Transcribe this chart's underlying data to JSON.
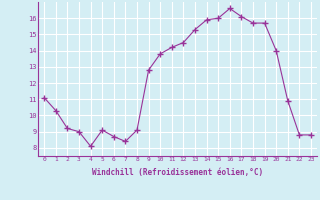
{
  "x": [
    0,
    1,
    2,
    3,
    4,
    5,
    6,
    7,
    8,
    9,
    10,
    11,
    12,
    13,
    14,
    15,
    16,
    17,
    18,
    19,
    20,
    21,
    22,
    23
  ],
  "y": [
    11.1,
    10.3,
    9.2,
    9.0,
    8.1,
    9.1,
    8.7,
    8.4,
    9.1,
    12.8,
    13.8,
    14.2,
    14.5,
    15.3,
    15.9,
    16.0,
    16.6,
    16.1,
    15.7,
    15.7,
    14.0,
    10.9,
    8.8,
    8.8
  ],
  "xlabel": "Windchill (Refroidissement éolien,°C)",
  "xlim": [
    -0.5,
    23.5
  ],
  "ylim": [
    7.5,
    17.0
  ],
  "yticks": [
    8,
    9,
    10,
    11,
    12,
    13,
    14,
    15,
    16
  ],
  "xticks": [
    0,
    1,
    2,
    3,
    4,
    5,
    6,
    7,
    8,
    9,
    10,
    11,
    12,
    13,
    14,
    15,
    16,
    17,
    18,
    19,
    20,
    21,
    22,
    23
  ],
  "line_color": "#993399",
  "marker": "+",
  "bg_color": "#d4eef4",
  "grid_color": "#ffffff",
  "tick_color": "#993399",
  "label_color": "#993399",
  "font_family": "monospace"
}
